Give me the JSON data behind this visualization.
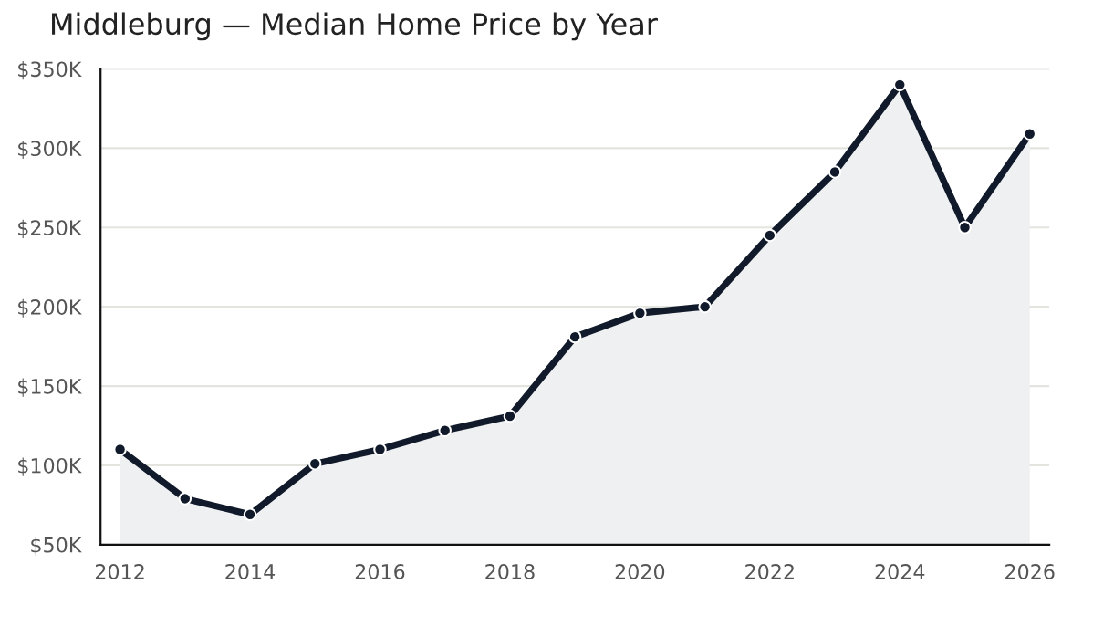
{
  "chart_data": {
    "type": "area",
    "title": "Middleburg — Median Home Price by Year",
    "x": [
      2012,
      2013,
      2014,
      2015,
      2016,
      2017,
      2018,
      2019,
      2020,
      2021,
      2022,
      2023,
      2024,
      2025,
      2026
    ],
    "series": [
      {
        "color": "#111a2b",
        "values": [
          110000,
          79000,
          69000,
          101000,
          110000,
          122000,
          131000,
          181000,
          196000,
          200000,
          245000,
          285000,
          340000,
          250000,
          309000
        ]
      }
    ],
    "xlim": [
      2011.7,
      2026.3
    ],
    "xticks": [
      2012,
      2014,
      2016,
      2018,
      2020,
      2022,
      2024,
      2026
    ],
    "ylim": [
      50000,
      350000
    ],
    "yticks": [
      {
        "value": 50000,
        "label": "$50K"
      },
      {
        "value": 100000,
        "label": "$100K"
      },
      {
        "value": 150000,
        "label": "$150K"
      },
      {
        "value": 200000,
        "label": "$200K"
      },
      {
        "value": 250000,
        "label": "$250K"
      },
      {
        "value": 300000,
        "label": "$300K"
      },
      {
        "value": 350000,
        "label": "$350K"
      }
    ],
    "grid": "y",
    "marker": "circle",
    "line_style": "solid",
    "legend": false
  }
}
